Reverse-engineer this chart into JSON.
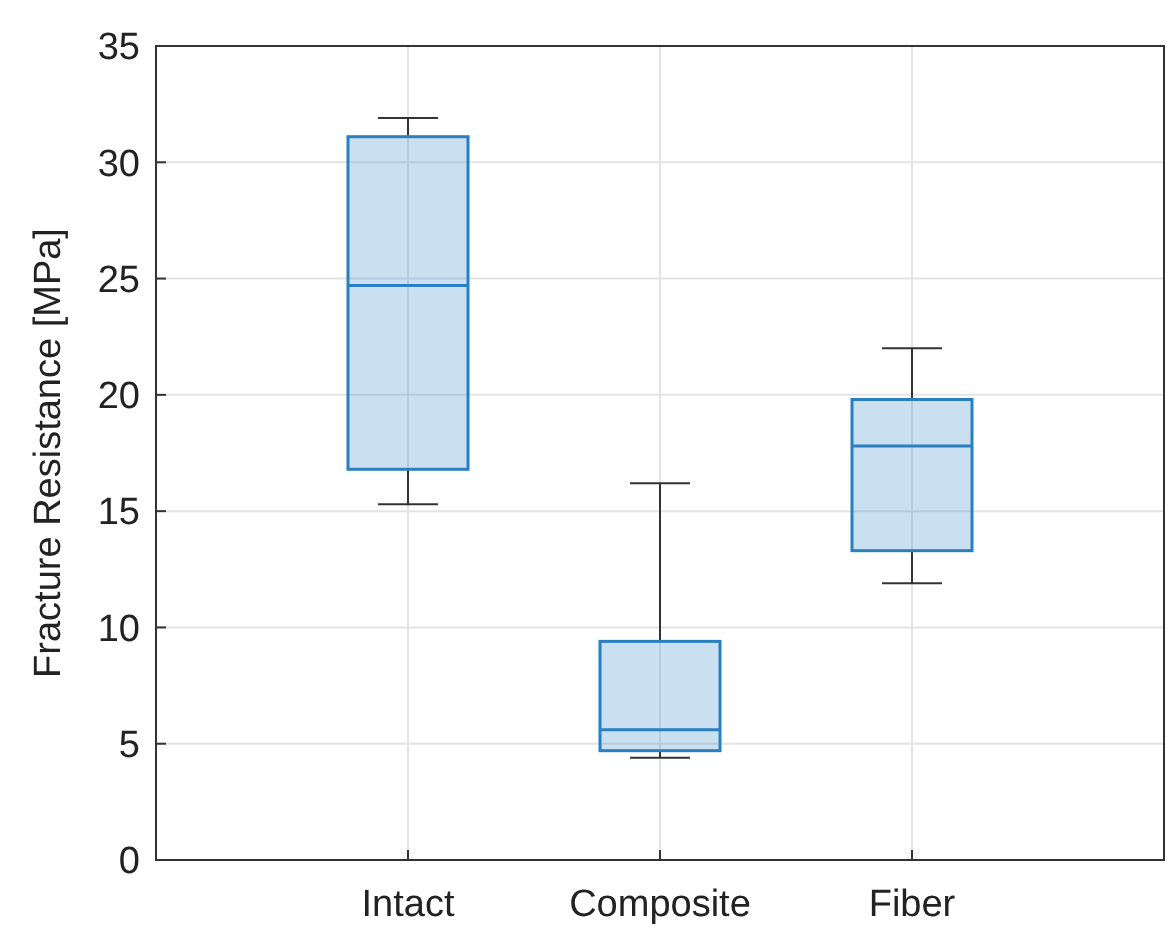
{
  "chart_data": {
    "type": "box",
    "ylabel": "Fracture Resistance [MPa]",
    "categories": [
      "Intact",
      "Composite",
      "Fiber"
    ],
    "boxes": [
      {
        "low": 15.3,
        "q1": 16.8,
        "median": 24.7,
        "q3": 31.1,
        "high": 31.9
      },
      {
        "low": 4.4,
        "q1": 4.7,
        "median": 5.6,
        "q3": 9.4,
        "high": 16.2
      },
      {
        "low": 11.9,
        "q1": 13.3,
        "median": 17.8,
        "q3": 19.8,
        "high": 22
      }
    ],
    "color": "#2a7fc1",
    "ylim": [
      0,
      35
    ],
    "yticks": [
      0,
      5,
      10,
      15,
      20,
      25,
      30,
      35
    ],
    "grid": true
  }
}
